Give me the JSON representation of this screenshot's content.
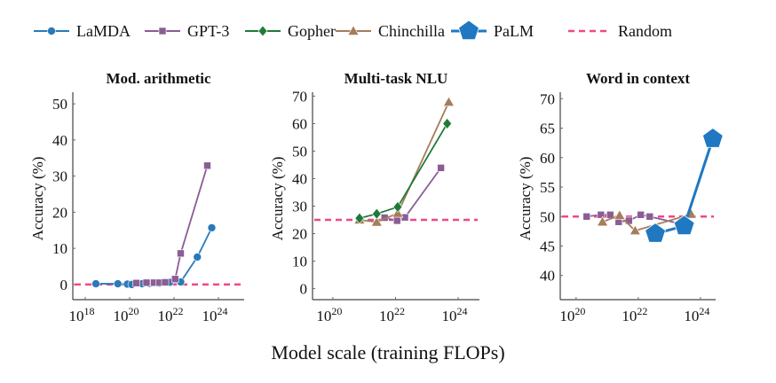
{
  "chart_data": {
    "type": "line",
    "legend": {
      "placement": "top",
      "entries": [
        {
          "name": "LaMDA",
          "color": "#2a7ab9",
          "marker": "circle"
        },
        {
          "name": "GPT-3",
          "color": "#8a5d94",
          "marker": "square"
        },
        {
          "name": "Gopher",
          "color": "#1f7a3a",
          "marker": "diamond"
        },
        {
          "name": "Chinchilla",
          "color": "#a67c5b",
          "marker": "triangle"
        },
        {
          "name": "PaLM",
          "color": "#1f78c1",
          "marker": "pentagon"
        },
        {
          "name": "Random",
          "color": "#f0478a",
          "marker": "dashed-line"
        }
      ]
    },
    "xlabel": "Model scale (training FLOPs)",
    "x_scale": "log",
    "panels": [
      {
        "title": "Mod. arithmetic",
        "ylabel": "Accuracy (%)",
        "xticks_exp": [
          18,
          20,
          22,
          24
        ],
        "yticks": [
          0,
          10,
          20,
          30,
          40,
          50
        ],
        "xlim_exp": [
          17.44,
          25.16
        ],
        "ylim": [
          -4.2,
          54.2
        ],
        "random": 0,
        "series": [
          {
            "name": "LaMDA",
            "x_exp": [
              18.48,
              19.47,
              19.9,
              20.1,
              20.56,
              20.9,
              21.35,
              21.8,
              22.3,
              23.05,
              23.7
            ],
            "y": [
              0.2,
              0.2,
              0.1,
              0.0,
              0.2,
              0.3,
              0.4,
              0.6,
              0.7,
              7.6,
              15.7
            ]
          },
          {
            "name": "GPT-3",
            "x_exp": [
              20.3,
              20.76,
              21.1,
              21.35,
              21.6,
              22.05,
              22.3,
              23.5
            ],
            "y": [
              0.4,
              0.5,
              0.5,
              0.5,
              0.6,
              1.5,
              8.6,
              32.9
            ]
          }
        ]
      },
      {
        "title": "Multi-task NLU",
        "ylabel": "Accuracy (%)",
        "xticks_exp": [
          20,
          22,
          24
        ],
        "yticks": [
          0,
          10,
          20,
          30,
          40,
          50,
          60,
          70
        ],
        "xlim_exp": [
          19.35,
          24.68
        ],
        "ylim": [
          -4,
          72.7
        ],
        "random": 25,
        "series": [
          {
            "name": "GPT-3",
            "x_exp": [
              21.65,
              22.05,
              22.3,
              23.45
            ],
            "y": [
              25.8,
              24.7,
              25.9,
              43.9
            ]
          },
          {
            "name": "Chinchilla",
            "x_exp": [
              20.85,
              21.4,
              22.07,
              23.7
            ],
            "y": [
              25.0,
              24.2,
              27.4,
              67.8
            ]
          },
          {
            "name": "Gopher",
            "x_exp": [
              20.85,
              21.4,
              22.07,
              23.65
            ],
            "y": [
              25.6,
              27.2,
              29.7,
              60.0
            ]
          }
        ]
      },
      {
        "title": "Word in context",
        "ylabel": "Accuracy (%)",
        "xticks_exp": [
          20,
          22,
          24
        ],
        "yticks": [
          40,
          45,
          50,
          55,
          60,
          65,
          70
        ],
        "xlim_exp": [
          19.49,
          24.49
        ],
        "ylim": [
          35.9,
          71.7
        ],
        "random": 50,
        "series": [
          {
            "name": "GPT-3",
            "x_exp": [
              20.34,
              20.8,
              21.1,
              21.37,
              21.7,
              22.08,
              22.37,
              23.48
            ],
            "y": [
              50.0,
              50.3,
              50.3,
              49.1,
              49.3,
              50.3,
              50.0,
              48.6
            ]
          },
          {
            "name": "Chinchilla",
            "x_exp": [
              20.85,
              21.4,
              21.9,
              23.7
            ],
            "y": [
              49.1,
              50.2,
              47.6,
              50.4
            ]
          },
          {
            "name": "PaLM",
            "x_exp": [
              22.55,
              23.48,
              24.4
            ],
            "y": [
              47.1,
              48.4,
              63.2
            ]
          }
        ]
      }
    ]
  }
}
